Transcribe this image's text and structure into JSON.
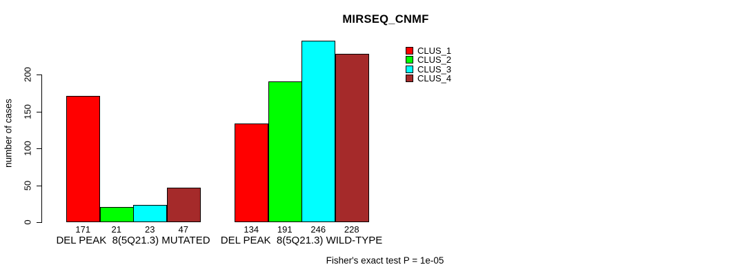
{
  "title": "MIRSEQ_CNMF",
  "footer": "Fisher's exact test P = 1e-05",
  "chart_data": {
    "type": "bar",
    "title": "MIRSEQ_CNMF",
    "xlabel": "",
    "ylabel": "number of cases",
    "ylim": [
      0,
      200
    ],
    "yticks": [
      0,
      50,
      100,
      150,
      200
    ],
    "grid": false,
    "legend_position": "right",
    "bar_value_labels_shown": true,
    "categories": [
      "DEL PEAK  8(5Q21.3) MUTATED",
      "DEL PEAK  8(5Q21.3) WILD-TYPE"
    ],
    "series": [
      {
        "name": "CLUS_1",
        "color": "#FF0000",
        "values": [
          171,
          134
        ]
      },
      {
        "name": "CLUS_2",
        "color": "#00FF00",
        "values": [
          21,
          191
        ]
      },
      {
        "name": "CLUS_3",
        "color": "#00FFFF",
        "values": [
          23,
          246
        ]
      },
      {
        "name": "CLUS_4",
        "color": "#A52A2A",
        "values": [
          47,
          228
        ]
      }
    ],
    "annotation": "Fisher's exact test P = 1e-05"
  }
}
